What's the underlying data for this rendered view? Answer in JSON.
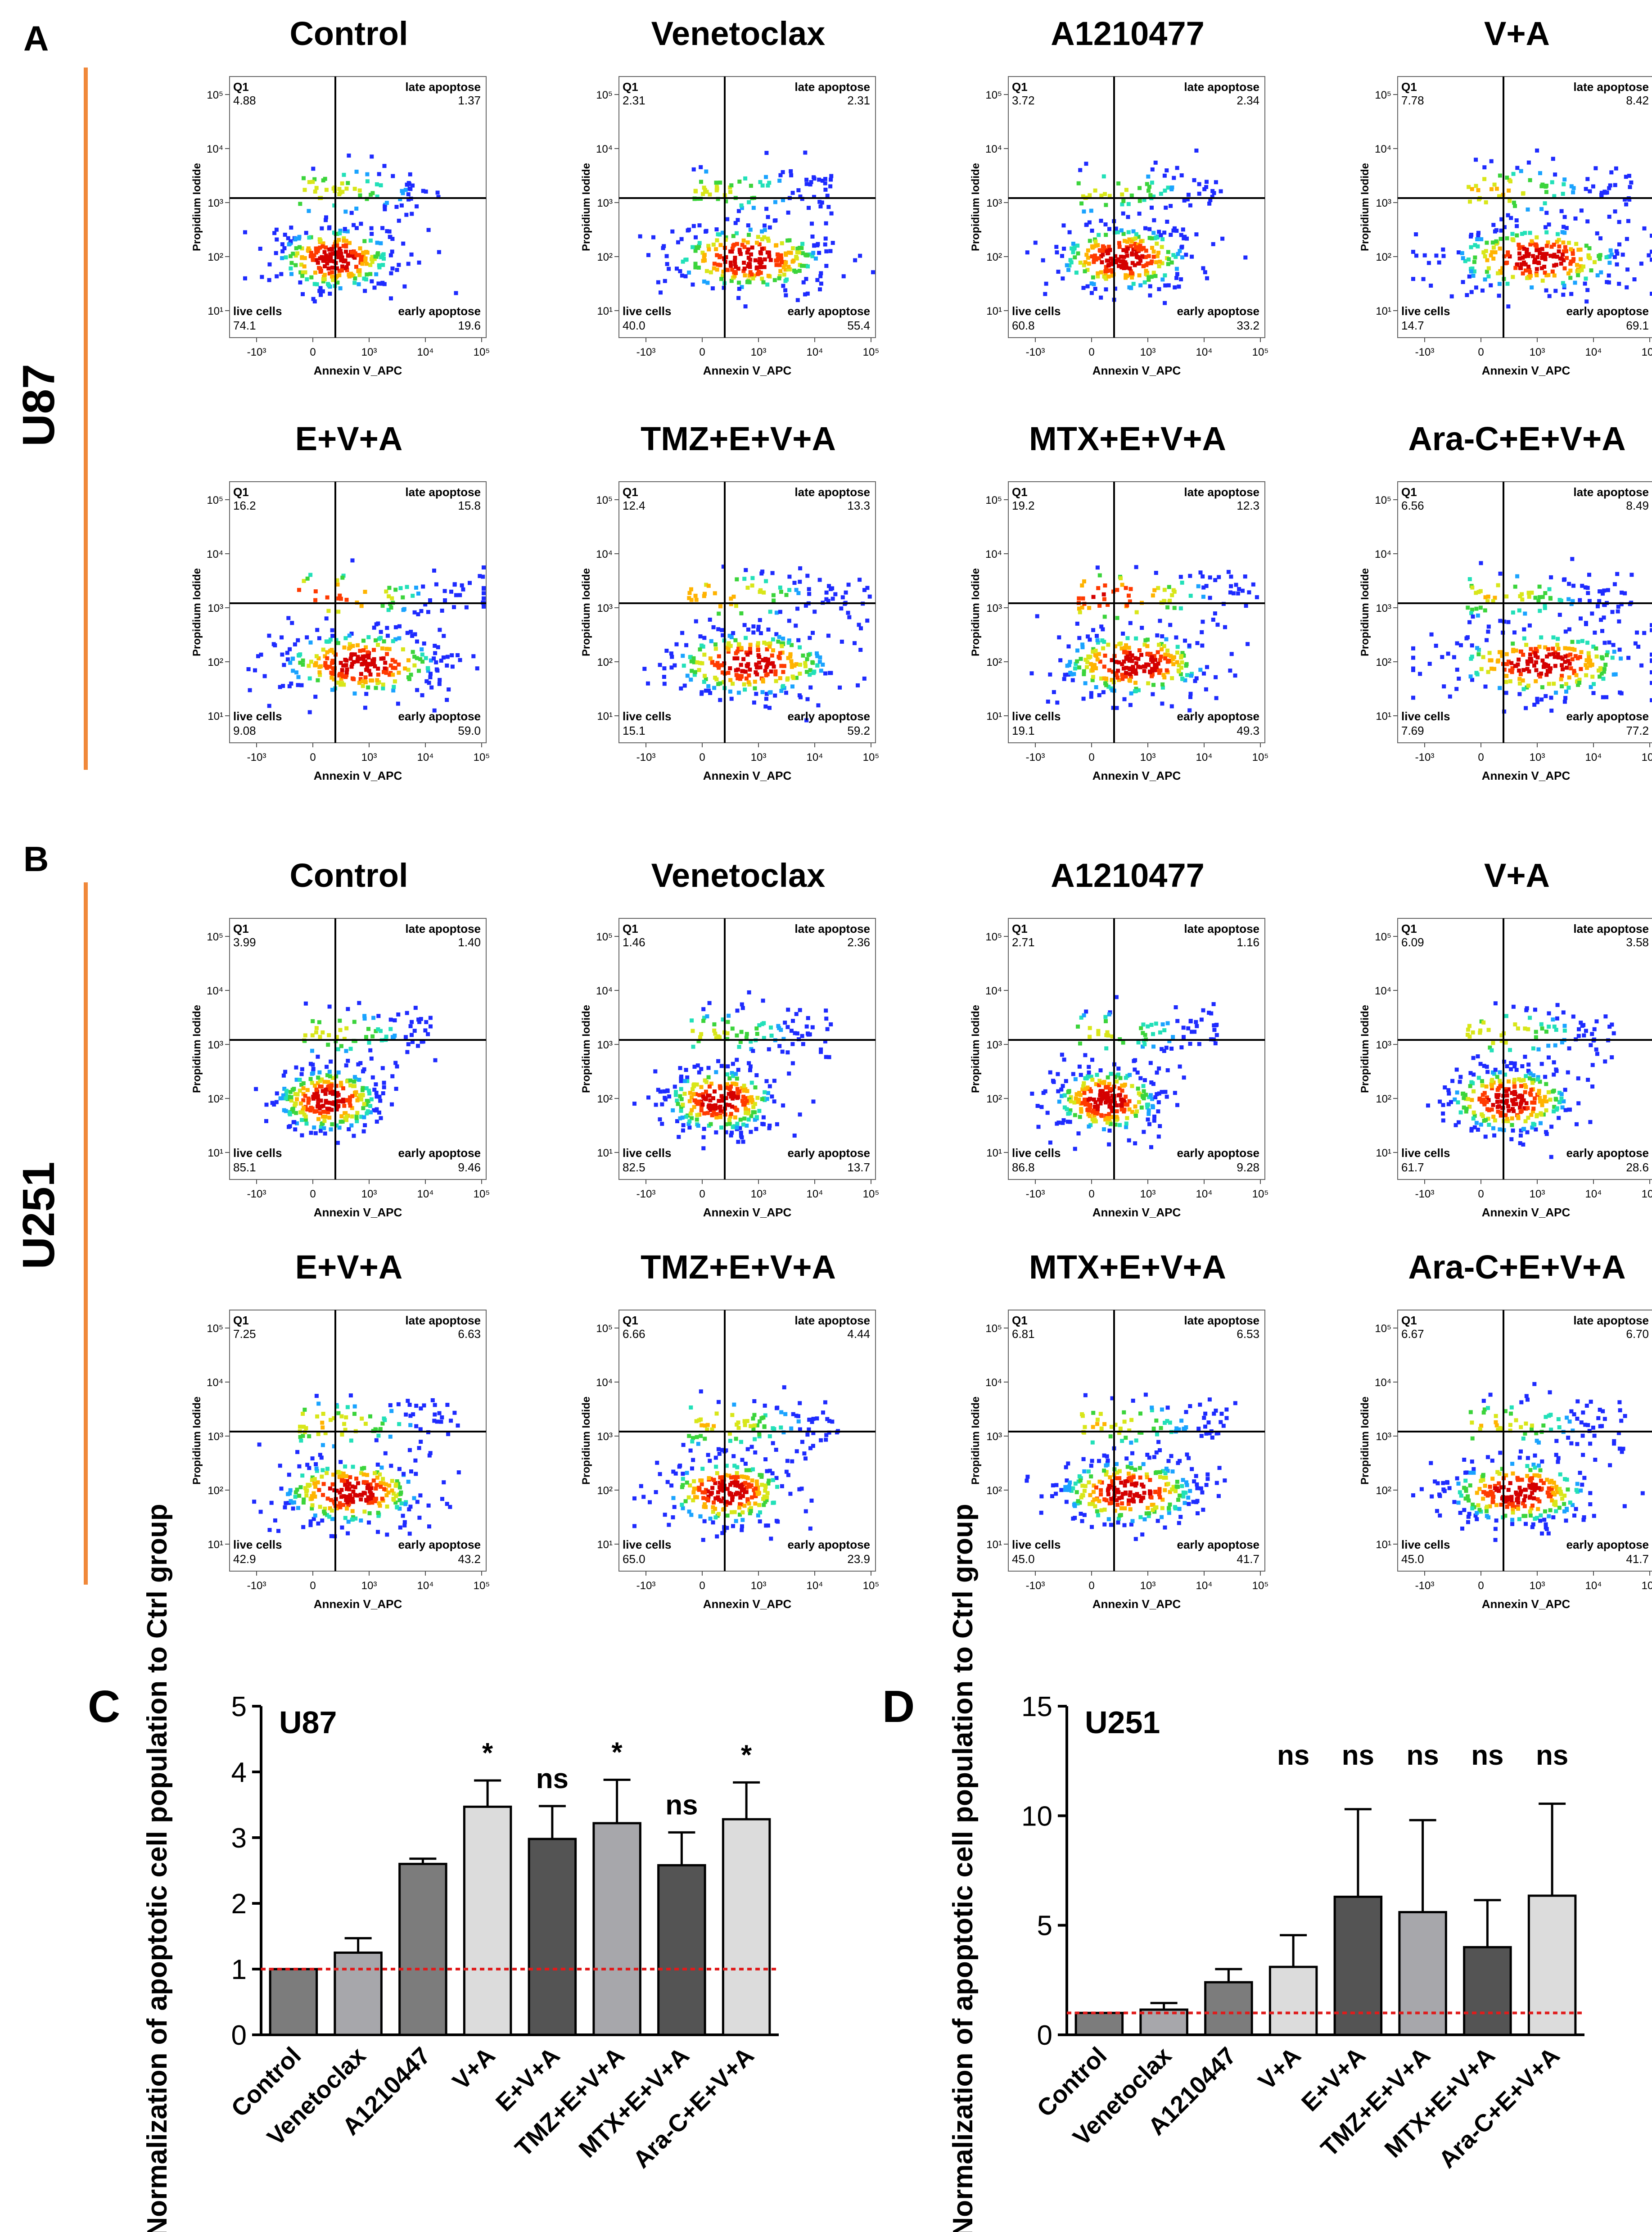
{
  "panel_letters": {
    "a": "A",
    "b": "B",
    "c": "C",
    "d": "D"
  },
  "row_labels": {
    "u87": "U87",
    "u251": "U251"
  },
  "colors": {
    "accent_bar": "#f0883a",
    "bar_dark": "#545454",
    "bar_mid": "#7c7c7c",
    "bar_light": "#a7a7ab",
    "bar_lightest": "#dcdcdc",
    "ref_line": "#e01b1b",
    "flow_palette": [
      "#1e2bff",
      "#1aa3ff",
      "#22e0b8",
      "#3bd43b",
      "#d8e619",
      "#ffb300",
      "#ff3a00",
      "#d40000"
    ]
  },
  "flow_axes": {
    "x_label": "Annexin V_APC",
    "y_label": "Propidium Iodide",
    "x_ticks": [
      "-10³",
      "0",
      "10³",
      "10⁴",
      "10⁵"
    ],
    "y_ticks": [
      "10¹",
      "10²",
      "10³",
      "10⁴",
      "10⁵"
    ]
  },
  "quadrant_labels": {
    "q1": "Q1",
    "late": "late apoptose",
    "live": "live cells",
    "early": "early apoptose"
  },
  "flow_panels": [
    {
      "title": "Control",
      "q1": "4.88",
      "late": "1.37",
      "live": "74.1",
      "early": "19.6"
    },
    {
      "title": "Venetoclax",
      "q1": "2.31",
      "late": "2.31",
      "live": "40.0",
      "early": "55.4"
    },
    {
      "title": "A1210477",
      "q1": "3.72",
      "late": "2.34",
      "live": "60.8",
      "early": "33.2"
    },
    {
      "title": "V+A",
      "q1": "7.78",
      "late": "8.42",
      "live": "14.7",
      "early": "69.1"
    },
    {
      "title": "E+V+A",
      "q1": "16.2",
      "late": "15.8",
      "live": "9.08",
      "early": "59.0"
    },
    {
      "title": "TMZ+E+V+A",
      "q1": "12.4",
      "late": "13.3",
      "live": "15.1",
      "early": "59.2"
    },
    {
      "title": "MTX+E+V+A",
      "q1": "19.2",
      "late": "12.3",
      "live": "19.1",
      "early": "49.3"
    },
    {
      "title": "Ara-C+E+V+A",
      "q1": "6.56",
      "late": "8.49",
      "live": "7.69",
      "early": "77.2"
    },
    {
      "title": "Control",
      "q1": "3.99",
      "late": "1.40",
      "live": "85.1",
      "early": "9.46"
    },
    {
      "title": "Venetoclax",
      "q1": "1.46",
      "late": "2.36",
      "live": "82.5",
      "early": "13.7"
    },
    {
      "title": "A1210477",
      "q1": "2.71",
      "late": "1.16",
      "live": "86.8",
      "early": "9.28"
    },
    {
      "title": "V+A",
      "q1": "6.09",
      "late": "3.58",
      "live": "61.7",
      "early": "28.6"
    },
    {
      "title": "E+V+A",
      "q1": "7.25",
      "late": "6.63",
      "live": "42.9",
      "early": "43.2"
    },
    {
      "title": "TMZ+E+V+A",
      "q1": "6.66",
      "late": "4.44",
      "live": "65.0",
      "early": "23.9"
    },
    {
      "title": "MTX+E+V+A",
      "q1": "6.81",
      "late": "6.53",
      "live": "45.0",
      "early": "41.7"
    },
    {
      "title": "Ara-C+E+V+A",
      "q1": "6.67",
      "late": "6.70",
      "live": "45.0",
      "early": "41.7"
    }
  ],
  "chart_data": [
    {
      "type": "bar",
      "panel": "C",
      "title": "U87",
      "ylabel": "Normalization of apoptotic cell population to Ctrl group",
      "ylim": [
        0,
        5
      ],
      "yticks": [
        "0",
        "1",
        "2",
        "3",
        "4",
        "5"
      ],
      "categories": [
        "Control",
        "Venetoclax",
        "A1210447",
        "V+A",
        "E+V+A",
        "TMZ+E+V+A",
        "MTX+E+V+A",
        "Ara-C+E+V+A"
      ],
      "values": [
        1.0,
        1.25,
        2.6,
        3.47,
        2.98,
        3.22,
        2.58,
        3.28
      ],
      "errors": [
        0.0,
        0.22,
        0.08,
        0.4,
        0.5,
        0.66,
        0.5,
        0.56
      ],
      "significance": [
        "",
        "",
        "",
        "*",
        "ns",
        "*",
        "ns",
        "*"
      ],
      "reference_line": 1,
      "bar_colors": [
        "#7c7c7c",
        "#a7a7ab",
        "#7c7c7c",
        "#dcdcdc",
        "#545454",
        "#a7a7ab",
        "#545454",
        "#dcdcdc"
      ]
    },
    {
      "type": "bar",
      "panel": "D",
      "title": "U251",
      "ylabel": "Normalization of apoptotic cell population to Ctrl group",
      "ylim": [
        0,
        15
      ],
      "yticks": [
        "0",
        "5",
        "10",
        "15"
      ],
      "categories": [
        "Control",
        "Venetoclax",
        "A1210447",
        "V+A",
        "E+V+A",
        "TMZ+E+V+A",
        "MTX+E+V+A",
        "Ara-C+E+V+A"
      ],
      "values": [
        1.0,
        1.15,
        2.4,
        3.1,
        6.3,
        5.6,
        4.0,
        6.35
      ],
      "errors": [
        0.0,
        0.3,
        0.6,
        1.45,
        4.0,
        4.2,
        2.15,
        4.2
      ],
      "significance": [
        "",
        "",
        "",
        "ns",
        "ns",
        "ns",
        "ns",
        "ns"
      ],
      "reference_line": 1,
      "bar_colors": [
        "#7c7c7c",
        "#a7a7ab",
        "#7c7c7c",
        "#dcdcdc",
        "#545454",
        "#a7a7ab",
        "#545454",
        "#dcdcdc"
      ]
    }
  ]
}
